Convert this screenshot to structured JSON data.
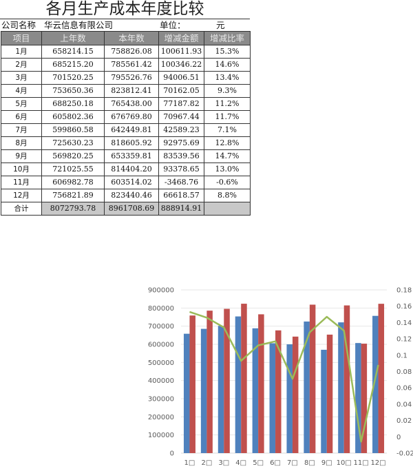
{
  "sheet": {
    "title": "各月生产成本年度比较",
    "company_label": "公司名称",
    "company_name": "华云信息有限公司",
    "unit_label": "单位：",
    "unit_value": "元",
    "headers": [
      "项目",
      "上年数",
      "本年数",
      "增减金额",
      "增减比率"
    ],
    "rows": [
      [
        "1月",
        "658214.15",
        "758826.08",
        "100611.93",
        "15.3%"
      ],
      [
        "2月",
        "685215.20",
        "785561.42",
        "100346.22",
        "14.6%"
      ],
      [
        "3月",
        "701520.25",
        "795526.76",
        "94006.51",
        "13.4%"
      ],
      [
        "4月",
        "753650.36",
        "823812.41",
        "70162.05",
        "9.3%"
      ],
      [
        "5月",
        "688250.18",
        "765438.00",
        "77187.82",
        "11.2%"
      ],
      [
        "6月",
        "605802.36",
        "676769.80",
        "70967.44",
        "11.7%"
      ],
      [
        "7月",
        "599860.58",
        "642449.81",
        "42589.23",
        "7.1%"
      ],
      [
        "8月",
        "725630.23",
        "818605.92",
        "92975.69",
        "12.8%"
      ],
      [
        "9月",
        "569820.25",
        "653359.81",
        "83539.56",
        "14.7%"
      ],
      [
        "10月",
        "721025.55",
        "814404.20",
        "93378.65",
        "13.0%"
      ],
      [
        "11月",
        "606982.78",
        "603514.02",
        "-3468.76",
        "-0.6%"
      ],
      [
        "12月",
        "756821.89",
        "823440.46",
        "66618.57",
        "8.8%"
      ]
    ],
    "total": [
      "合计",
      "8072793.78",
      "8961708.69",
      "888914.91",
      ""
    ]
  },
  "chart_data": {
    "type": "bar",
    "title": "",
    "xlabel": "",
    "ylabel": "",
    "categories": [
      "1□",
      "2□",
      "3□",
      "4□",
      "5□",
      "6□",
      "7□",
      "8□",
      "9□",
      "10□",
      "11□",
      "12□"
    ],
    "series": [
      {
        "name": "上年数",
        "type": "bar",
        "axis": "left",
        "color": "#4f81bd",
        "values": [
          658214.15,
          685215.2,
          701520.25,
          753650.36,
          688250.18,
          605802.36,
          599860.58,
          725630.23,
          569820.25,
          721025.55,
          606982.78,
          756821.89
        ]
      },
      {
        "name": "本年数",
        "type": "bar",
        "axis": "left",
        "color": "#c0504d",
        "values": [
          758826.08,
          785561.42,
          795526.76,
          823812.41,
          765438.0,
          676769.8,
          642449.81,
          818605.92,
          653359.81,
          814404.2,
          603514.02,
          823440.46
        ]
      },
      {
        "name": "增减比率",
        "type": "line",
        "axis": "right",
        "color": "#9bbb59",
        "values": [
          0.153,
          0.146,
          0.134,
          0.093,
          0.112,
          0.117,
          0.071,
          0.128,
          0.147,
          0.13,
          -0.006,
          0.088
        ]
      }
    ],
    "ylim": [
      0,
      900000
    ],
    "yticks": [
      "0",
      "100000",
      "200000",
      "300000",
      "400000",
      "500000",
      "600000",
      "700000",
      "800000",
      "900000"
    ],
    "y2lim": [
      -0.02,
      0.18
    ],
    "y2ticks": [
      "-0.02",
      "0",
      "0.02",
      "0.04",
      "0.06",
      "0.08",
      "0.1",
      "0.12",
      "0.14",
      "0.16",
      "0.18"
    ],
    "grid": true,
    "legend": "none"
  }
}
